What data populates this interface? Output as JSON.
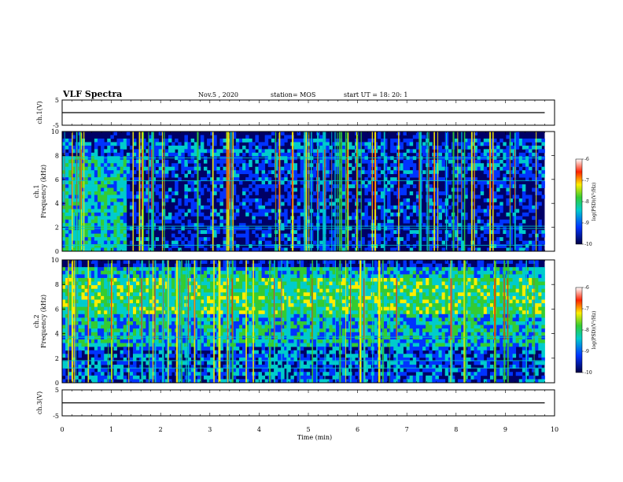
{
  "header": {
    "title": "VLF Spectra",
    "date": "Nov.5 , 2020",
    "station": "station= MOS",
    "start": "start UT = 18: 20: 1"
  },
  "colors": {
    "low": "#000066",
    "mid_blue": "#0033ff",
    "cyan": "#00cccc",
    "green": "#33cc33",
    "yellow": "#ffee00",
    "red": "#ff2200",
    "white": "#ffffff"
  },
  "chart_data": [
    {
      "type": "line",
      "panel": "ch1-waveform",
      "ylabel": "ch.1(V)",
      "ylim": [
        -5,
        5
      ],
      "y_ticks": [
        "5",
        "-5"
      ],
      "xlim": [
        0,
        10
      ],
      "series": [
        {
          "x": [
            0,
            9.8
          ],
          "y": [
            0,
            0
          ]
        }
      ]
    },
    {
      "type": "heatmap",
      "panel": "ch1-spectrogram",
      "ylabel": "ch.1",
      "ylabel2": "Frequency (kHz)",
      "ylim": [
        0,
        10
      ],
      "y_ticks": [
        "0",
        "2",
        "4",
        "6",
        "8",
        "10"
      ],
      "xlim": [
        0,
        10
      ],
      "xmax_data": 9.8,
      "colorbar": {
        "label": "log(PSD)(V²/Hz)",
        "range": [
          -10,
          -6
        ],
        "ticks": [
          "-6",
          "-7",
          "-8",
          "-9",
          "-10"
        ]
      },
      "features": {
        "lines_kHz": [
          0.5,
          1.9,
          2.1,
          5.9,
          7.8
        ],
        "broadband_region_min": [
          0,
          1.3
        ],
        "top_cutoff_kHz": 9.3
      }
    },
    {
      "type": "heatmap",
      "panel": "ch2-spectrogram",
      "ylabel": "ch.2",
      "ylabel2": "Frequency (kHz)",
      "ylim": [
        0,
        10
      ],
      "y_ticks": [
        "0",
        "2",
        "4",
        "6",
        "8",
        "10"
      ],
      "xlim": [
        0,
        10
      ],
      "xmax_data": 9.8,
      "colorbar": {
        "label": "log(PSD)(V²/Hz)",
        "range": [
          -10,
          -6
        ],
        "ticks": [
          "-6",
          "-7",
          "-8",
          "-9",
          "-10"
        ]
      },
      "features": {
        "peak_band_kHz": [
          5.5,
          8.5
        ],
        "lines_kHz": [
          1.2,
          1.8,
          3.7
        ]
      }
    },
    {
      "type": "line",
      "panel": "ch3-waveform",
      "ylabel": "ch.3(V)",
      "ylim": [
        -5,
        5
      ],
      "y_ticks": [
        "5",
        "-5"
      ],
      "xlim": [
        0,
        10
      ],
      "series": [
        {
          "x": [
            0,
            9.8
          ],
          "y": [
            0,
            0
          ]
        }
      ]
    }
  ],
  "x_axis": {
    "label": "Time (min)",
    "ticks": [
      "0",
      "1",
      "2",
      "3",
      "4",
      "5",
      "6",
      "7",
      "8",
      "9",
      "10"
    ]
  }
}
